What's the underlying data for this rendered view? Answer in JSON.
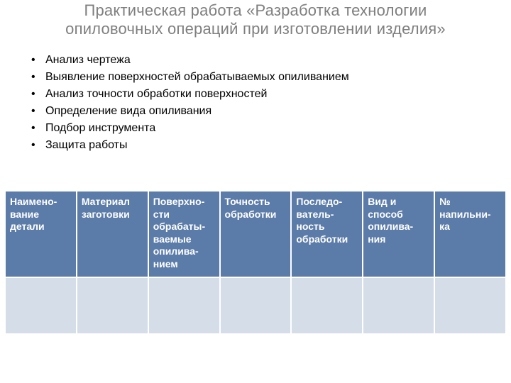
{
  "title": "Практическая работа «Разработка технологии опиловочных операций при изготовлении изделия»",
  "bullets": {
    "items": [
      "Анализ чертежа",
      "Выявление поверхностей обрабатываемых опиливанием",
      "Анализ точности обработки поверхностей",
      "Определение вида опиливания",
      "Подбор инструмента",
      "Защита работы"
    ]
  },
  "table": {
    "columns": [
      "Наимено-вание детали",
      "Материал заготовки",
      "Поверхно-сти обрабаты-ваемые опилива-нием",
      "Точность обработки",
      "Последо-ватель-ность обработки",
      "Вид и способ опилива-ния",
      "№ напильни-ка"
    ],
    "rows": [
      [
        "",
        "",
        "",
        "",
        "",
        "",
        ""
      ]
    ],
    "header_bg": "#5b7ba8",
    "header_fg": "#ffffff",
    "cell_bg": "#d5dde8",
    "header_fontsize": 14,
    "cell_fontsize": 14,
    "border_spacing": 2
  },
  "colors": {
    "title": "#7f7f7f",
    "body_text": "#000000",
    "background": "#ffffff"
  },
  "typography": {
    "title_fontsize": 22,
    "bullet_fontsize": 16,
    "font_family": "Arial"
  }
}
